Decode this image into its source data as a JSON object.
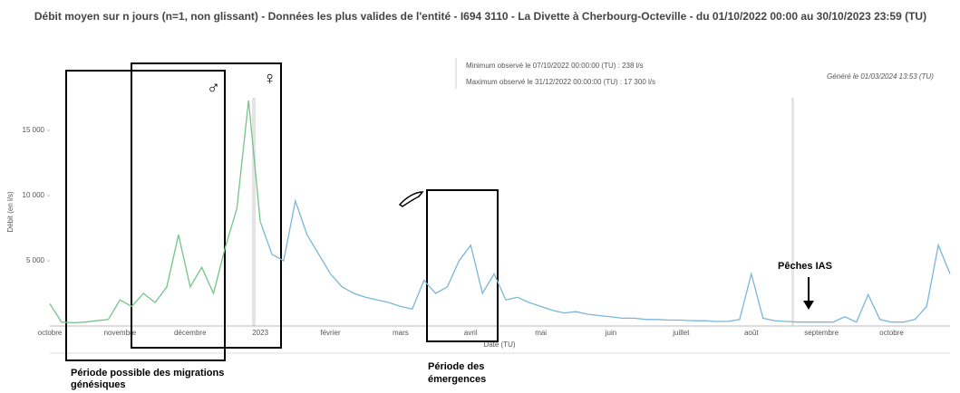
{
  "chart_data": {
    "type": "line",
    "title": "Débit moyen sur n jours (n=1, non glissant) - Données les plus valides de l'entité - I694 3110 - La Divette à Cherbourg-Octeville - du 01/10/2022 00:00 au 30/10/2023 23:59 (TU)",
    "ylabel": "Débit (en l/s)",
    "xlabel": "Date (TU)",
    "min_note": "Minimum observé le 07/10/2022 00:00:00 (TU) : 238 l/s",
    "max_note": "Maximum observé le 31/12/2022 00:00:00 (TU) : 17 300 l/s",
    "generated": "Généré le 01/03/2024 13:53 (TU)",
    "annotations": {
      "migration": "Période possible des migrations génésiques",
      "emergence": "Période des émergences",
      "peches": "Pêches IAS",
      "male": "♂",
      "female": "♀"
    },
    "ylim": [
      0,
      17500
    ],
    "yticks": [
      {
        "value": 5000,
        "label": "5 000"
      },
      {
        "value": 10000,
        "label": "10 000"
      },
      {
        "value": 15000,
        "label": "15 000"
      }
    ],
    "categories": [
      "octobre",
      null,
      null,
      null,
      null,
      null,
      "novembre",
      null,
      null,
      null,
      null,
      null,
      "décembre",
      null,
      null,
      null,
      null,
      null,
      "2023",
      null,
      null,
      null,
      null,
      null,
      "février",
      null,
      null,
      null,
      null,
      null,
      "mars",
      null,
      null,
      null,
      null,
      null,
      "avril",
      null,
      null,
      null,
      null,
      null,
      "mai",
      null,
      null,
      null,
      null,
      null,
      "juin",
      null,
      null,
      null,
      null,
      null,
      "juillet",
      null,
      null,
      null,
      null,
      null,
      "août",
      null,
      null,
      null,
      null,
      null,
      "septembre",
      null,
      null,
      null,
      null,
      null,
      "octobre",
      null,
      null,
      null,
      null,
      null
    ],
    "series": [
      {
        "color": "#74c48a",
        "values": [
          1700,
          300,
          250,
          300,
          400,
          500,
          2000,
          1500,
          2500,
          1800,
          3000,
          7000,
          3000,
          4500,
          2500,
          6000,
          9000,
          17300,
          8000,
          null,
          null,
          null,
          null,
          null,
          null,
          null,
          null,
          null,
          null,
          null,
          null,
          null,
          null,
          null,
          null,
          null,
          null,
          null,
          null,
          null,
          null,
          null,
          null,
          null,
          null,
          null,
          null,
          null,
          null,
          null,
          null,
          null,
          null,
          null,
          null,
          null,
          null,
          null,
          null,
          null,
          null,
          null,
          null,
          null,
          null,
          null,
          null,
          null,
          null,
          null,
          null,
          null,
          null,
          null,
          null,
          null,
          null,
          null
        ]
      },
      {
        "color": "#7ab6d9",
        "values": [
          null,
          null,
          null,
          null,
          null,
          null,
          null,
          null,
          null,
          null,
          null,
          null,
          null,
          null,
          null,
          null,
          null,
          null,
          8000,
          5500,
          5000,
          9600,
          7000,
          5500,
          4000,
          3000,
          2500,
          2200,
          2000,
          1800,
          1500,
          1300,
          3500,
          2500,
          3000,
          5000,
          6200,
          2500,
          4000,
          2000,
          2200,
          1800,
          1500,
          1200,
          1000,
          1100,
          900,
          800,
          700,
          600,
          600,
          500,
          500,
          450,
          450,
          400,
          400,
          350,
          350,
          500,
          4000,
          600,
          400,
          350,
          300,
          300,
          300,
          300,
          700,
          300,
          2400,
          500,
          300,
          300,
          500,
          1500,
          6200,
          4000
        ]
      }
    ]
  }
}
